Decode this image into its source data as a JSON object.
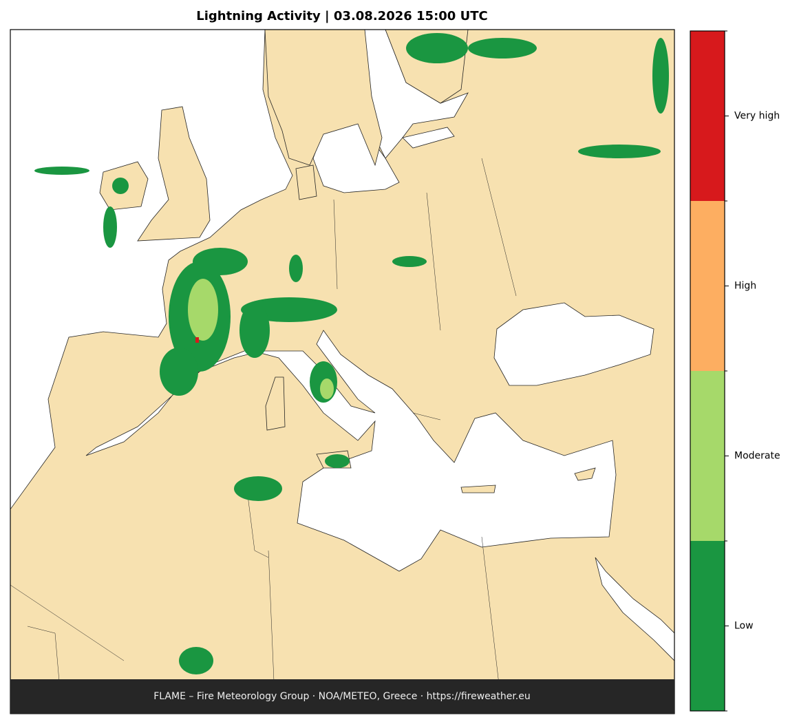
{
  "title": "Lightning Activity  |  03.08.2026 15:00 UTC",
  "footer": "FLAME – Fire Meteorology Group · NOA/METEO, Greece · https://fireweather.eu",
  "legend": {
    "levels": [
      {
        "label": "Low",
        "color": "#1a9641"
      },
      {
        "label": "Moderate",
        "color": "#a6d96a"
      },
      {
        "label": "High",
        "color": "#fdae61"
      },
      {
        "label": "Very high",
        "color": "#d7191c"
      }
    ]
  }
}
